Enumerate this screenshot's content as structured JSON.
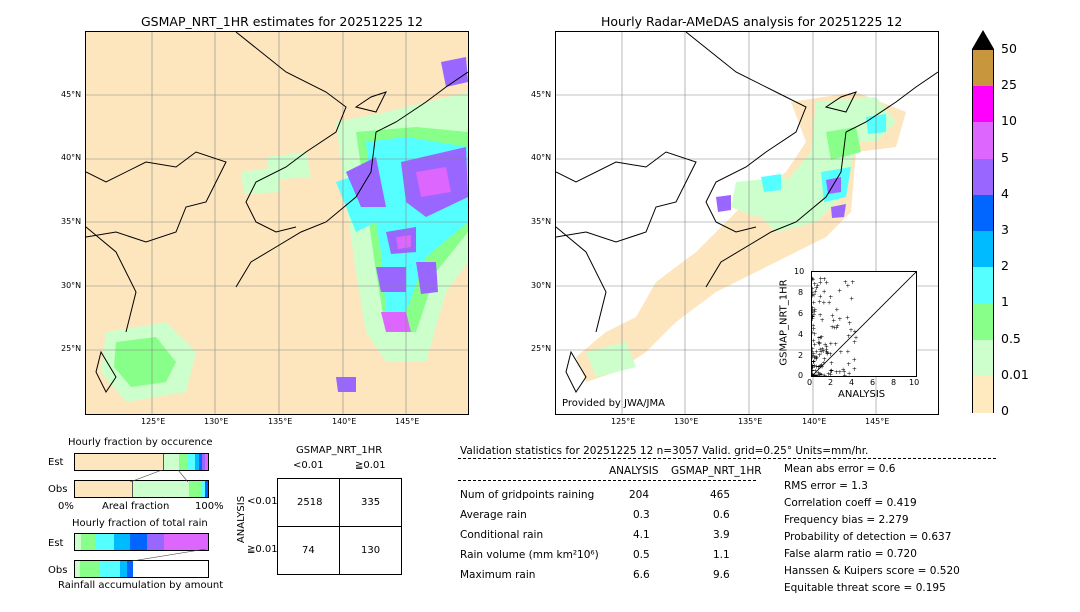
{
  "left_map": {
    "title": "GSMAP_NRT_1HR estimates for 20251225 12",
    "lat_labels": [
      "45°N",
      "40°N",
      "35°N",
      "30°N",
      "25°N"
    ],
    "lon_labels": [
      "125°E",
      "130°E",
      "135°E",
      "140°E",
      "145°E"
    ]
  },
  "right_map": {
    "title": "Hourly Radar-AMeDAS analysis for 20251225 12",
    "lat_labels": [
      "45°N",
      "40°N",
      "35°N",
      "30°N",
      "25°N"
    ],
    "lon_labels": [
      "125°E",
      "130°E",
      "135°E",
      "140°E",
      "145°E"
    ],
    "credit": "Provided by JWA/JMA"
  },
  "scatter": {
    "xlabel": "ANALYSIS",
    "ylabel": "GSMAP_NRT_1HR",
    "x_ticks": [
      "0",
      "2",
      "4",
      "6",
      "8",
      "10"
    ],
    "y_ticks": [
      "0",
      "2",
      "4",
      "6",
      "8",
      "10"
    ]
  },
  "colorbar": {
    "labels": [
      "50",
      "25",
      "10",
      "5",
      "4",
      "3",
      "2",
      "1",
      "0.5",
      "0.01",
      "0"
    ],
    "colors": [
      "#c8963c",
      "#ff00ff",
      "#dd66ff",
      "#9966ff",
      "#0066ff",
      "#00bbff",
      "#55ffff",
      "#88ff88",
      "#ccffcc",
      "#ffe9bf"
    ]
  },
  "occurrence": {
    "title": "Hourly fraction by occurence",
    "rows": [
      "Est",
      "Obs"
    ],
    "axis_left": "0%",
    "axis_mid": "Areal fraction",
    "axis_right": "100%"
  },
  "total_rain": {
    "title": "Hourly fraction of total rain",
    "rows": [
      "Est",
      "Obs"
    ],
    "footer": "Rainfall accumulation by amount"
  },
  "contingency": {
    "title": "GSMAP_NRT_1HR",
    "col_headers": [
      "<0.01",
      "≧0.01"
    ],
    "row_axis": "ANALYSIS",
    "row_headers": [
      "<0.01",
      "≧0.01"
    ],
    "cells": [
      [
        "2518",
        "335"
      ],
      [
        "74",
        "130"
      ]
    ]
  },
  "validation": {
    "header": "Validation statistics for 20251225 12  n=3057 Valid. grid=0.25° Units=mm/hr.",
    "col1": "ANALYSIS",
    "col2": "GSMAP_NRT_1HR",
    "rows": [
      {
        "label": "Num of gridpoints raining",
        "a": "204",
        "g": "465"
      },
      {
        "label": "Average rain",
        "a": "0.3",
        "g": "0.6"
      },
      {
        "label": "Conditional rain",
        "a": "4.1",
        "g": "3.9"
      },
      {
        "label": "Rain volume (mm km²10⁶)",
        "a": "0.5",
        "g": "1.1"
      },
      {
        "label": "Maximum rain",
        "a": "6.6",
        "g": "9.6"
      }
    ],
    "scores": [
      "Mean abs error =    0.6",
      "RMS error =    1.3",
      "Correlation coeff =  0.419",
      "Frequency bias =  2.279",
      "Probability of detection =  0.637",
      "False alarm ratio =  0.720",
      "Hanssen & Kuipers score =  0.520",
      "Equitable threat score =  0.195"
    ]
  }
}
